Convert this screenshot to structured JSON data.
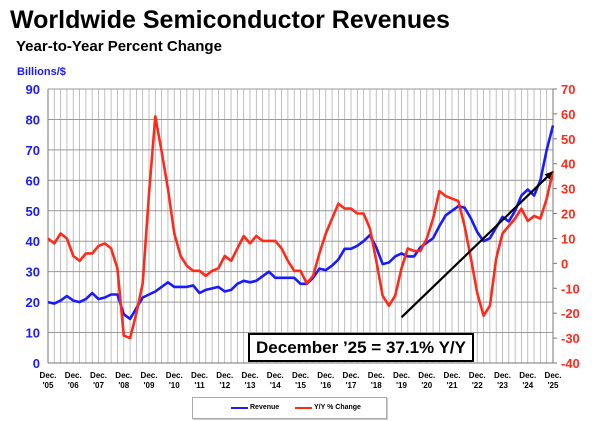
{
  "chart_data": {
    "type": "line",
    "title": "Worldwide Semiconductor Revenues",
    "subtitle": "Year-to-Year Percent Change",
    "ylabel": "Billions/$",
    "ylim": [
      0,
      90
    ],
    "y2lim": [
      -40,
      70
    ],
    "yticks": [
      "0",
      "10",
      "20",
      "30",
      "40",
      "50",
      "60",
      "70",
      "80",
      "90"
    ],
    "y2ticks": [
      "-40",
      "-30",
      "-20",
      "-10",
      "0",
      "10",
      "20",
      "30",
      "40",
      "50",
      "60",
      "70"
    ],
    "xtick_labels": [
      [
        "Dec.",
        "'05"
      ],
      [
        "Dec.",
        "'06"
      ],
      [
        "Dec.",
        "'07"
      ],
      [
        "Dec.",
        "'08"
      ],
      [
        "Dec.",
        "'09"
      ],
      [
        "Dec.",
        "'10"
      ],
      [
        "Dec.",
        "'11"
      ],
      [
        "Dec.",
        "'12"
      ],
      [
        "Dec.",
        "'13"
      ],
      [
        "Dec.",
        "'14"
      ],
      [
        "Dec.",
        "'15"
      ],
      [
        "Dec.",
        "'16"
      ],
      [
        "Dec.",
        "'17"
      ],
      [
        "Dec.",
        "'18"
      ],
      [
        "Dec.",
        "'19"
      ],
      [
        "Dec.",
        "'20"
      ],
      [
        "Dec.",
        "'21"
      ],
      [
        "Dec.",
        "'22"
      ],
      [
        "Dec.",
        "'23"
      ],
      [
        "Dec.",
        "'24"
      ],
      [
        "Dec.",
        "'25"
      ]
    ],
    "grid": true,
    "legend_position": "bottom",
    "series": [
      {
        "name": "Revenue",
        "axis": "left",
        "color": "#1a1aff",
        "values": [
          20,
          19.5,
          20.5,
          22,
          20.5,
          20,
          21,
          23,
          21,
          21.5,
          22.5,
          22.5,
          16,
          14.5,
          18,
          21.5,
          22.5,
          23.5,
          25,
          26.5,
          25,
          25,
          25,
          25.5,
          23,
          24,
          24.5,
          25,
          23.5,
          24,
          26,
          27,
          26.5,
          27,
          28.5,
          30,
          28,
          28,
          28,
          28,
          26,
          26,
          28,
          31,
          30.5,
          32,
          34,
          37.5,
          37.5,
          38.5,
          40,
          42,
          38,
          32.5,
          33,
          35,
          36,
          35,
          35,
          38,
          39.5,
          41,
          45,
          48.5,
          50,
          51.5,
          51,
          47.5,
          43,
          40,
          41,
          44.5,
          48,
          46.5,
          50,
          55,
          57,
          55,
          60,
          70,
          78
        ]
      },
      {
        "name": "Y/Y % Change",
        "axis": "right",
        "color": "#ff2a1a",
        "values": [
          10,
          8,
          12,
          10,
          3,
          1,
          4,
          4,
          7,
          8,
          6,
          -2,
          -29,
          -30,
          -20,
          -8,
          28,
          59,
          45,
          30,
          12,
          3,
          -1,
          -3,
          -3,
          -5,
          -3,
          -2,
          3,
          1,
          6,
          11,
          8,
          11,
          9,
          9,
          9,
          6,
          1,
          -3,
          -3,
          -8,
          -5,
          4,
          12,
          18,
          24,
          22,
          22,
          20,
          20,
          14,
          1,
          -13,
          -17,
          -13,
          -2,
          6,
          5,
          5,
          10,
          18,
          29,
          27,
          26,
          25,
          15,
          2,
          -12,
          -21,
          -17,
          2,
          12,
          15,
          18,
          22,
          17,
          19,
          18,
          26,
          37.1
        ]
      }
    ],
    "x_period": "quarterly, Dec. 2005 to Dec. 2025",
    "trend_arrow": {
      "from": [
        "Dec. '19",
        15
      ],
      "to": [
        "Dec. '25",
        63
      ],
      "axis": "left",
      "color": "#000000"
    },
    "annotation": "December ’25 = 37.1% Y/Y"
  }
}
